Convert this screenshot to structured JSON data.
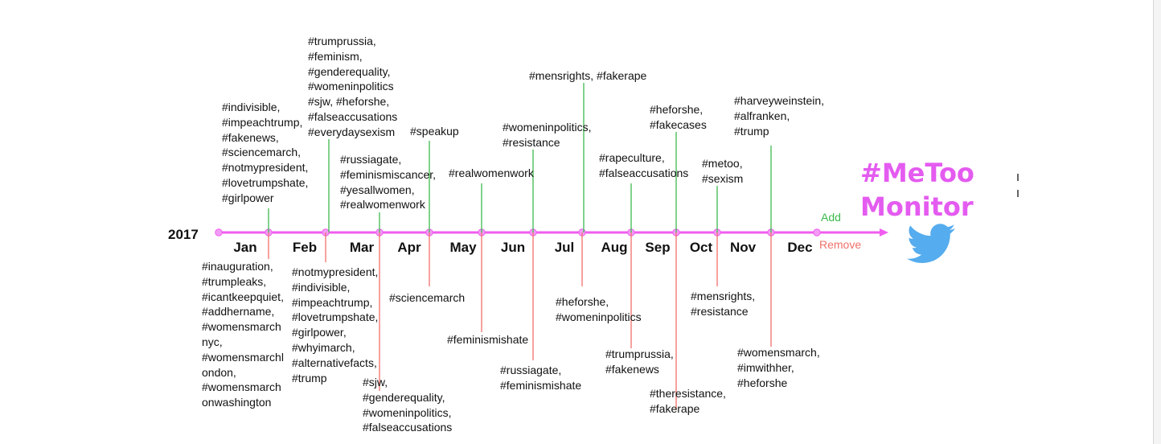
{
  "year": "2017",
  "colors": {
    "axis": "#f05cf0",
    "add": "#3dba4e",
    "remove": "#f0706a",
    "brand": "#e45bf0",
    "bird": "#55acee"
  },
  "months": [
    "Jan",
    "Feb",
    "Mar",
    "Apr",
    "May",
    "Jun",
    "Jul",
    "Aug",
    "Sep",
    "Oct",
    "Nov",
    "Dec"
  ],
  "legend": {
    "add": "Add",
    "remove": "Remove"
  },
  "brand": {
    "line1": "#MeToo",
    "line2": "Monitor",
    "icon": "twitter-bird-icon"
  },
  "added": [
    {
      "text": "#indivisible,\n#impeachtrump,\n#fakenews,\n#sciencemarch,\n#notmypresident,\n#lovetrumpshate,\n#girlpower"
    },
    {
      "text": "#trumprussia,\n#feminism,\n#genderequality,\n#womeninpolitics\n#sjw, #heforshe,\n#falseaccusations\n#everydaysexism"
    },
    {
      "text": "#russiagate,\n#feminismiscancer,\n#yesallwomen,\n#realwomenwork"
    },
    {
      "text": "#speakup"
    },
    {
      "text": "#realwomenwork"
    },
    {
      "text": "#womeninpolitics,\n#resistance"
    },
    {
      "text": "#mensrights, #fakerape"
    },
    {
      "text": "#rapeculture,\n#falseaccusations"
    },
    {
      "text": "#heforshe,\n#fakecases"
    },
    {
      "text": "#metoo,\n#sexism"
    },
    {
      "text": "#harveyweinstein,\n#alfranken,\n#trump"
    }
  ],
  "removed": [
    {
      "text": "#inauguration,\n#trumpleaks,\n#icantkeepquiet,\n#addhername,\n#womensmarch\nnyc,\n#womensmarchl\nondon,\n#womensmarch\nonwashington"
    },
    {
      "text": "#notmypresident,\n#indivisible,\n#impeachtrump,\n#lovetrumpshate,\n#girlpower,\n#whyimarch,\n#alternativefacts,\n#trump"
    },
    {
      "text": "#sjw,\n#genderequality,\n#womeninpolitics,\n#falseaccusations"
    },
    {
      "text": "#sciencemarch"
    },
    {
      "text": "#feminismishate"
    },
    {
      "text": "#russiagate,\n#feminismishate"
    },
    {
      "text": "#heforshe,\n#womeninpolitics"
    },
    {
      "text": "#trumprussia,\n#fakenews"
    },
    {
      "text": "#theresistance,\n#fakerape"
    },
    {
      "text": "#mensrights,\n#resistance"
    },
    {
      "text": "#womensmarch,\n#imwithher,\n#heforshe"
    }
  ]
}
